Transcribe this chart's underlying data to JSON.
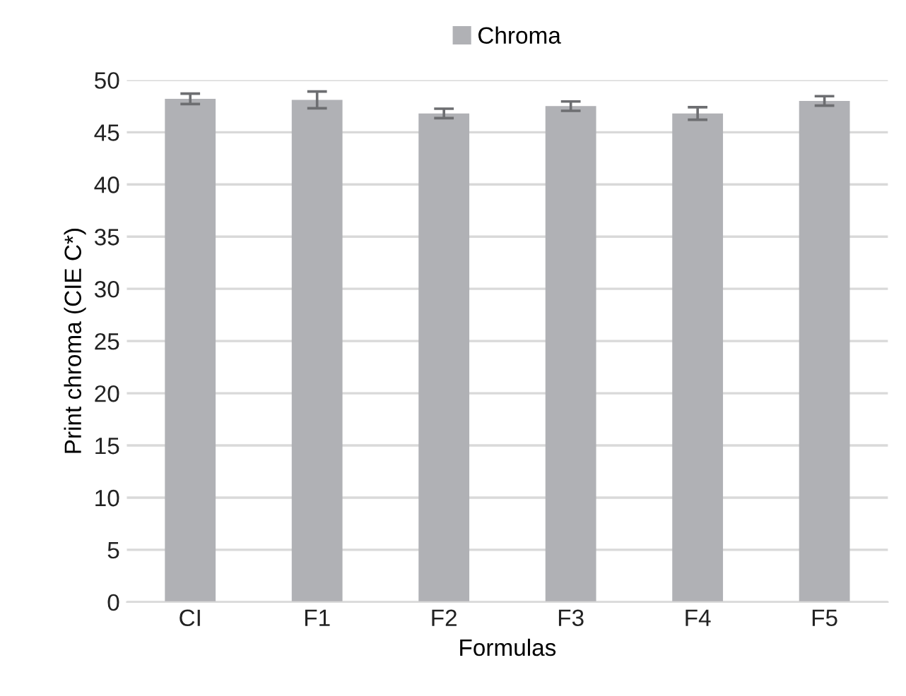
{
  "chart_data": {
    "type": "bar",
    "xlabel": "Formulas",
    "ylabel": "Print chroma (CIE C*)",
    "categories": [
      "CI",
      "F1",
      "F2",
      "F3",
      "F4",
      "F5"
    ],
    "series": [
      {
        "name": "Chroma",
        "color": "#b0b1b5",
        "values": [
          48.2,
          48.1,
          46.8,
          47.5,
          46.8,
          48.0
        ],
        "errors": [
          0.5,
          0.8,
          0.45,
          0.45,
          0.6,
          0.45
        ]
      }
    ],
    "ylim": [
      0,
      50
    ],
    "yticks": [
      0,
      5,
      10,
      15,
      20,
      25,
      30,
      35,
      40,
      45,
      50
    ],
    "grid": "y",
    "legend": "top"
  }
}
